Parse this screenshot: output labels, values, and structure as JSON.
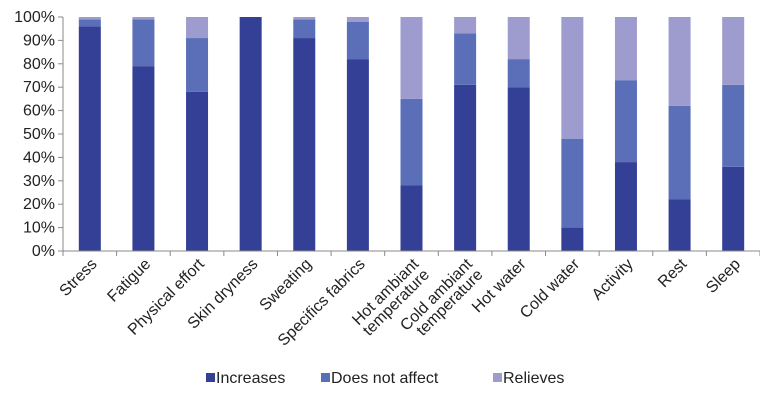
{
  "chart_data": {
    "type": "bar",
    "stacked": true,
    "percent": true,
    "categories": [
      [
        "Stress"
      ],
      [
        "Fatigue"
      ],
      [
        "Physical effort"
      ],
      [
        "Skin dryness"
      ],
      [
        "Sweating"
      ],
      [
        "Specifics fabrics"
      ],
      [
        "Hot ambiant",
        "temperature"
      ],
      [
        "Cold ambiant",
        "temperature"
      ],
      [
        "Hot water"
      ],
      [
        "Cold water"
      ],
      [
        "Activity"
      ],
      [
        "Rest"
      ],
      [
        "Sleep"
      ]
    ],
    "series": [
      {
        "name": "Increases",
        "color": "#343f96",
        "values": [
          96,
          79,
          68,
          100,
          91,
          82,
          28,
          71,
          70,
          10,
          38,
          22,
          36
        ]
      },
      {
        "name": "Does not affect",
        "color": "#5a6fb8",
        "values": [
          3,
          20,
          23,
          0,
          8,
          16,
          37,
          22,
          12,
          38,
          35,
          40,
          35
        ]
      },
      {
        "name": "Relieves",
        "color": "#9e9bcf",
        "values": [
          1,
          1,
          9,
          0,
          1,
          2,
          35,
          7,
          18,
          52,
          27,
          38,
          29
        ]
      }
    ],
    "yticks": [
      "0%",
      "10%",
      "20%",
      "30%",
      "40%",
      "50%",
      "60%",
      "70%",
      "80%",
      "90%",
      "100%"
    ],
    "ylim": [
      0,
      100
    ],
    "grid": false,
    "legend_position": "bottom"
  }
}
